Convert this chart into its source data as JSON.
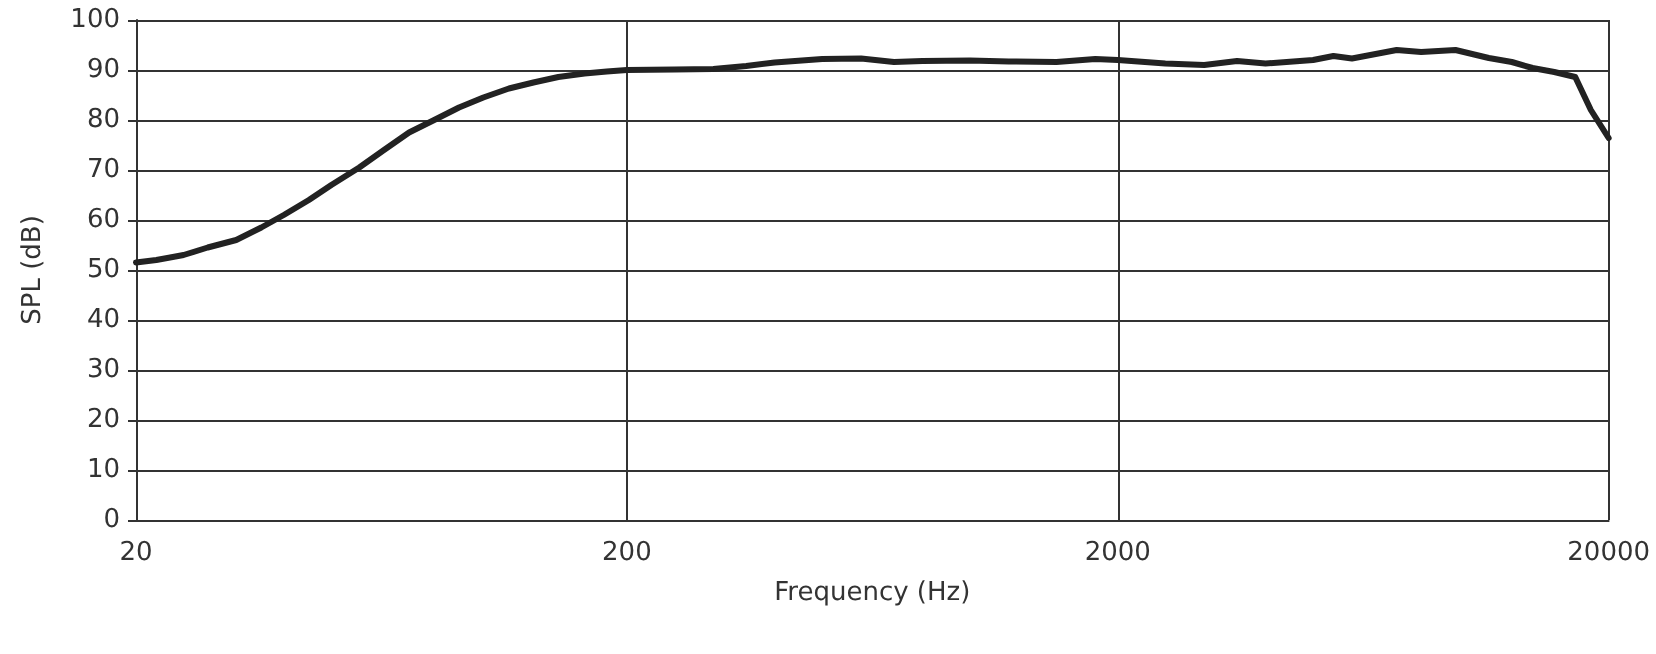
{
  "chart_data": {
    "type": "line",
    "xlabel": "Frequency (Hz)",
    "ylabel": "SPL (dB)",
    "log": "x",
    "grid": true,
    "marker": "none",
    "line_style": "solid",
    "xlim": [
      20,
      20000
    ],
    "xticks": [
      20,
      200,
      2000,
      20000
    ],
    "ylim": [
      0,
      100
    ],
    "yticks": [
      0,
      10,
      20,
      30,
      40,
      50,
      60,
      70,
      80,
      90,
      100
    ],
    "series": [
      {
        "color": "#222222",
        "x": [
          20,
          22,
          25,
          28,
          32,
          36,
          40,
          45,
          50,
          57,
          64,
          72,
          81,
          91,
          102,
          115,
          129,
          145,
          164,
          182,
          200,
          250,
          300,
          350,
          400,
          500,
          600,
          700,
          800,
          1000,
          1200,
          1500,
          1800,
          2000,
          2500,
          3000,
          3500,
          4000,
          5000,
          5500,
          6000,
          7400,
          8300,
          9750,
          11400,
          12700,
          14000,
          15500,
          17100,
          18400,
          20000
        ],
        "values": [
          51.5,
          52,
          53,
          54.5,
          56,
          58.5,
          61,
          64,
          67,
          70.5,
          74,
          77.5,
          80,
          82.5,
          84.5,
          86.3,
          87.5,
          88.6,
          89.3,
          89.7,
          90,
          90.1,
          90.2,
          90.8,
          91.5,
          92.2,
          92.3,
          91.6,
          91.8,
          91.9,
          91.7,
          91.6,
          92.2,
          92,
          91.3,
          91,
          91.8,
          91.3,
          92,
          92.8,
          92.3,
          94,
          93.6,
          94,
          92.4,
          91.6,
          90.4,
          89.6,
          88.6,
          82,
          76.4
        ]
      }
    ]
  }
}
